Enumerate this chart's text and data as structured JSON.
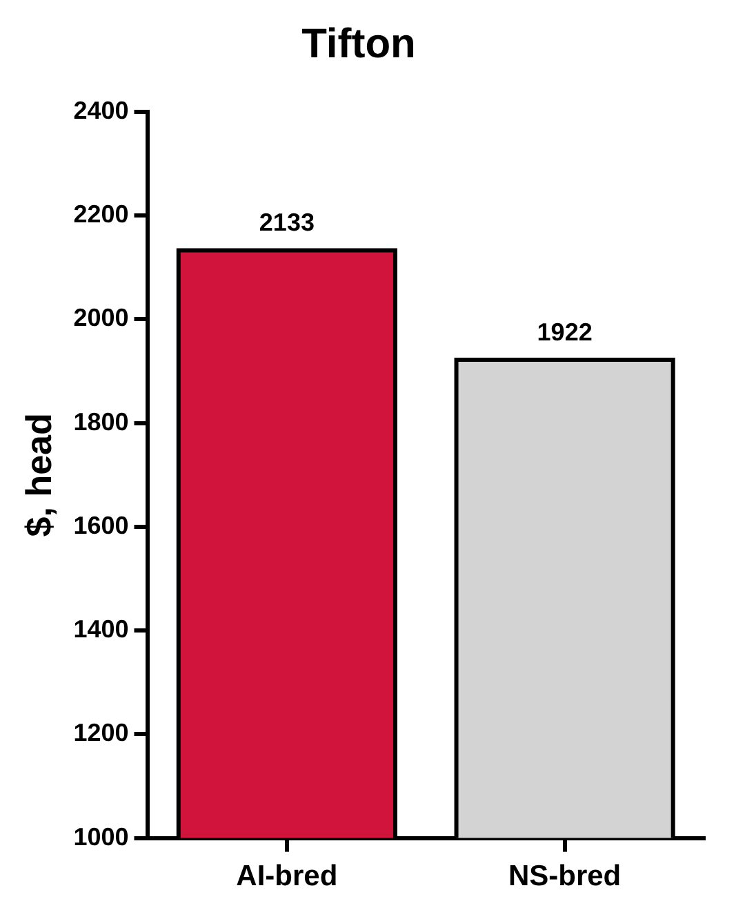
{
  "chart_data": {
    "type": "bar",
    "title": "Tifton",
    "ylabel": "$, head",
    "categories": [
      "AI-bred",
      "NS-bred"
    ],
    "values": [
      2133,
      1922
    ],
    "colors": [
      "#d0143c",
      "#d3d3d3"
    ],
    "ylim": [
      1000,
      2400
    ],
    "yticks": [
      1000,
      1200,
      1400,
      1600,
      1800,
      2000,
      2200,
      2400
    ],
    "grid": false,
    "legend": false,
    "data_labels": true
  }
}
